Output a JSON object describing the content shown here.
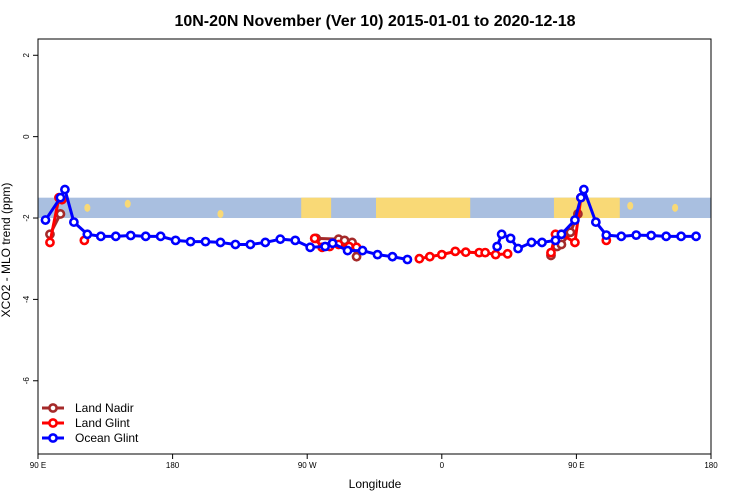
{
  "colors": {
    "land_color": "#f9d976",
    "ocean_color": "#a9bfe0"
  },
  "chart_data": {
    "type": "line",
    "title": "10N-20N November (Ver 10)   2015-01-01 to 2020-12-18",
    "xlabel": "Longitude",
    "ylabel": "XCO2 - MLO trend (ppm)",
    "xlim": [
      90,
      540
    ],
    "ylim": [
      -7.8,
      2.4
    ],
    "x_ticks": [
      {
        "value": 90,
        "label": "90 E"
      },
      {
        "value": 180,
        "label": "180"
      },
      {
        "value": 270,
        "label": "90 W"
      },
      {
        "value": 360,
        "label": "0"
      },
      {
        "value": 450,
        "label": "90 E"
      },
      {
        "value": 540,
        "label": "180"
      }
    ],
    "y_ticks": [
      {
        "value": 2,
        "label": "2"
      },
      {
        "value": 0,
        "label": "0"
      },
      {
        "value": -2,
        "label": "-2"
      },
      {
        "value": -4,
        "label": "-4"
      },
      {
        "value": -6,
        "label": "-6"
      }
    ],
    "map_band": {
      "y_range": [
        -2.0,
        -1.5
      ],
      "land_segments": [
        [
          266,
          286
        ],
        [
          316,
          379
        ],
        [
          435,
          479
        ]
      ],
      "land_blobs": [
        [
          123,
          -1.75
        ],
        [
          150,
          -1.65
        ],
        [
          212,
          -1.9
        ],
        [
          456,
          -1.85
        ],
        [
          486,
          -1.7
        ],
        [
          516,
          -1.75
        ]
      ]
    },
    "legend_position": "bottom-left",
    "series": [
      {
        "name": "Land Nadir",
        "color": "#a52a2a",
        "segments": [
          [
            [
              98,
              -2.4
            ],
            [
              105,
              -1.9
            ]
          ],
          [
            [
              276,
              -2.5
            ],
            [
              291,
              -2.52
            ],
            [
              295,
              -2.55
            ],
            [
              300,
              -2.6
            ],
            [
              303,
              -2.95
            ]
          ],
          [
            [
              433,
              -2.92
            ],
            [
              437,
              -2.7
            ],
            [
              440,
              -2.65
            ],
            [
              446,
              -2.35
            ],
            [
              451,
              -1.9
            ]
          ]
        ]
      },
      {
        "name": "Land Glint",
        "color": "#ff0000",
        "segments": [
          [
            [
              98,
              -2.6
            ],
            [
              104,
              -1.5
            ],
            [
              106,
              -1.55
            ]
          ],
          [
            [
              121,
              -2.55
            ]
          ],
          [
            [
              275,
              -2.5
            ],
            [
              280,
              -2.72
            ],
            [
              285,
              -2.7
            ],
            [
              291,
              -2.65
            ],
            [
              298,
              -2.7
            ],
            [
              303,
              -2.72
            ]
          ],
          [
            [
              345,
              -3.0
            ],
            [
              352,
              -2.95
            ],
            [
              360,
              -2.9
            ],
            [
              369,
              -2.82
            ],
            [
              376,
              -2.84
            ],
            [
              385,
              -2.85
            ],
            [
              389,
              -2.85
            ],
            [
              396,
              -2.9
            ],
            [
              404,
              -2.88
            ]
          ],
          [
            [
              433,
              -2.85
            ],
            [
              436,
              -2.4
            ],
            [
              440,
              -2.4
            ],
            [
              449,
              -2.6
            ],
            [
              453,
              -1.5
            ]
          ],
          [
            [
              470,
              -2.55
            ]
          ]
        ]
      },
      {
        "name": "Ocean Glint",
        "color": "#0000ff",
        "segments": [
          [
            [
              95,
              -2.05
            ],
            [
              105,
              -1.5
            ],
            [
              108,
              -1.3
            ],
            [
              114,
              -2.1
            ],
            [
              123,
              -2.4
            ],
            [
              132,
              -2.45
            ],
            [
              142,
              -2.45
            ],
            [
              152,
              -2.43
            ],
            [
              162,
              -2.45
            ],
            [
              172,
              -2.45
            ],
            [
              182,
              -2.55
            ],
            [
              192,
              -2.58
            ],
            [
              202,
              -2.58
            ],
            [
              212,
              -2.6
            ],
            [
              222,
              -2.65
            ],
            [
              232,
              -2.65
            ],
            [
              242,
              -2.6
            ],
            [
              252,
              -2.52
            ],
            [
              262,
              -2.55
            ],
            [
              272,
              -2.72
            ],
            [
              282,
              -2.7
            ],
            [
              287,
              -2.62
            ],
            [
              297,
              -2.8
            ],
            [
              307,
              -2.8
            ],
            [
              317,
              -2.9
            ],
            [
              327,
              -2.95
            ],
            [
              337,
              -3.02
            ]
          ],
          [
            [
              397,
              -2.7
            ],
            [
              400,
              -2.4
            ],
            [
              406,
              -2.5
            ],
            [
              411,
              -2.75
            ],
            [
              420,
              -2.6
            ],
            [
              427,
              -2.6
            ],
            [
              436,
              -2.55
            ],
            [
              440,
              -2.4
            ],
            [
              449,
              -2.05
            ],
            [
              453,
              -1.5
            ],
            [
              455,
              -1.3
            ],
            [
              463,
              -2.1
            ],
            [
              470,
              -2.42
            ],
            [
              480,
              -2.45
            ],
            [
              490,
              -2.42
            ],
            [
              500,
              -2.43
            ],
            [
              510,
              -2.45
            ],
            [
              520,
              -2.45
            ],
            [
              530,
              -2.45
            ]
          ]
        ]
      }
    ]
  }
}
